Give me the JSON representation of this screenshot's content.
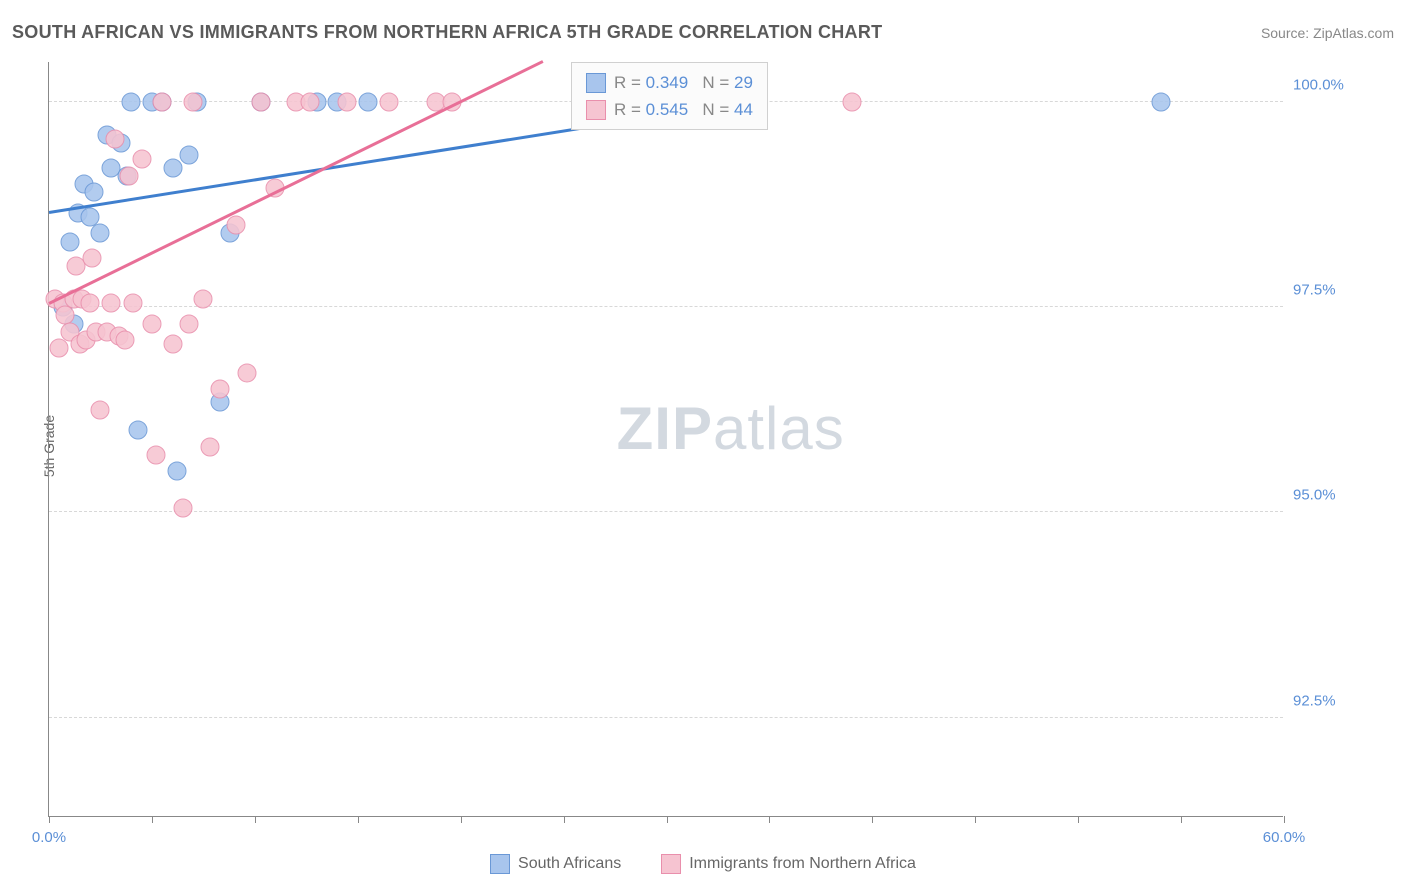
{
  "title": "SOUTH AFRICAN VS IMMIGRANTS FROM NORTHERN AFRICA 5TH GRADE CORRELATION CHART",
  "source": "Source: ZipAtlas.com",
  "y_axis_label": "5th Grade",
  "watermark": {
    "zip": "ZIP",
    "atlas": "atlas"
  },
  "chart": {
    "type": "scatter",
    "background_color": "#ffffff",
    "grid_color": "#d8d8d8",
    "axis_color": "#888888",
    "xlim": [
      0,
      60
    ],
    "ylim": [
      91.3,
      100.5
    ],
    "x_ticks": [
      0,
      5,
      10,
      15,
      20,
      25,
      30,
      35,
      40,
      45,
      50,
      55,
      60
    ],
    "x_tick_labels": {
      "0": "0.0%",
      "60": "60.0%"
    },
    "y_gridlines": [
      92.5,
      95.0,
      97.5,
      100.0
    ],
    "y_tick_labels": [
      "92.5%",
      "95.0%",
      "97.5%",
      "100.0%"
    ],
    "marker_radius": 9.5,
    "marker_border_width": 1,
    "marker_fill_opacity": 0.35,
    "series": [
      {
        "name": "South Africans",
        "color_fill": "#a8c5ed",
        "color_stroke": "#6a98d6",
        "trend_color": "#3f7fce",
        "trend": {
          "x1": 0,
          "y1": 98.65,
          "x2": 34,
          "y2": 100.0
        },
        "stats": {
          "r": "0.349",
          "n": "29"
        },
        "points": [
          [
            0.7,
            97.5
          ],
          [
            1.0,
            98.3
          ],
          [
            1.2,
            97.3
          ],
          [
            1.4,
            98.65
          ],
          [
            1.7,
            99.0
          ],
          [
            2.0,
            98.6
          ],
          [
            2.2,
            98.9
          ],
          [
            2.5,
            98.4
          ],
          [
            2.8,
            99.6
          ],
          [
            3.0,
            99.2
          ],
          [
            3.5,
            99.5
          ],
          [
            3.8,
            99.1
          ],
          [
            4.0,
            100.0
          ],
          [
            4.3,
            96.0
          ],
          [
            5.0,
            100.0
          ],
          [
            5.5,
            100.0
          ],
          [
            6.0,
            99.2
          ],
          [
            6.2,
            95.5
          ],
          [
            6.8,
            99.35
          ],
          [
            7.2,
            100.0
          ],
          [
            8.3,
            96.35
          ],
          [
            8.8,
            98.4
          ],
          [
            10.3,
            100.0
          ],
          [
            13.0,
            100.0
          ],
          [
            14.0,
            100.0
          ],
          [
            15.5,
            100.0
          ],
          [
            29.7,
            100.0
          ],
          [
            33.5,
            100.0
          ],
          [
            54.0,
            100.0
          ]
        ]
      },
      {
        "name": "Immigrants from Northern Africa",
        "color_fill": "#f6c4d1",
        "color_stroke": "#e98fac",
        "trend_color": "#e86f97",
        "trend": {
          "x1": 0,
          "y1": 97.55,
          "x2": 24,
          "y2": 100.5
        },
        "stats": {
          "r": "0.545",
          "n": "44"
        },
        "points": [
          [
            0.3,
            97.6
          ],
          [
            0.5,
            97.0
          ],
          [
            0.7,
            97.55
          ],
          [
            0.8,
            97.4
          ],
          [
            1.0,
            97.2
          ],
          [
            1.2,
            97.6
          ],
          [
            1.3,
            98.0
          ],
          [
            1.5,
            97.05
          ],
          [
            1.6,
            97.6
          ],
          [
            1.8,
            97.1
          ],
          [
            2.0,
            97.55
          ],
          [
            2.1,
            98.1
          ],
          [
            2.3,
            97.2
          ],
          [
            2.5,
            96.25
          ],
          [
            2.8,
            97.2
          ],
          [
            3.0,
            97.55
          ],
          [
            3.2,
            99.55
          ],
          [
            3.4,
            97.15
          ],
          [
            3.7,
            97.1
          ],
          [
            3.9,
            99.1
          ],
          [
            4.1,
            97.55
          ],
          [
            4.5,
            99.3
          ],
          [
            5.0,
            97.3
          ],
          [
            5.2,
            95.7
          ],
          [
            5.5,
            100.0
          ],
          [
            6.0,
            97.05
          ],
          [
            6.5,
            95.05
          ],
          [
            6.8,
            97.3
          ],
          [
            7.0,
            100.0
          ],
          [
            7.5,
            97.6
          ],
          [
            7.8,
            95.8
          ],
          [
            8.3,
            96.5
          ],
          [
            9.1,
            98.5
          ],
          [
            9.6,
            96.7
          ],
          [
            10.3,
            100.0
          ],
          [
            11.0,
            98.95
          ],
          [
            12.0,
            100.0
          ],
          [
            12.7,
            100.0
          ],
          [
            14.5,
            100.0
          ],
          [
            16.5,
            100.0
          ],
          [
            18.8,
            100.0
          ],
          [
            19.6,
            100.0
          ],
          [
            26.5,
            100.0
          ],
          [
            39.0,
            100.0
          ]
        ]
      }
    ]
  },
  "legend_box": {
    "r_label": "R =",
    "n_label": "N ="
  }
}
